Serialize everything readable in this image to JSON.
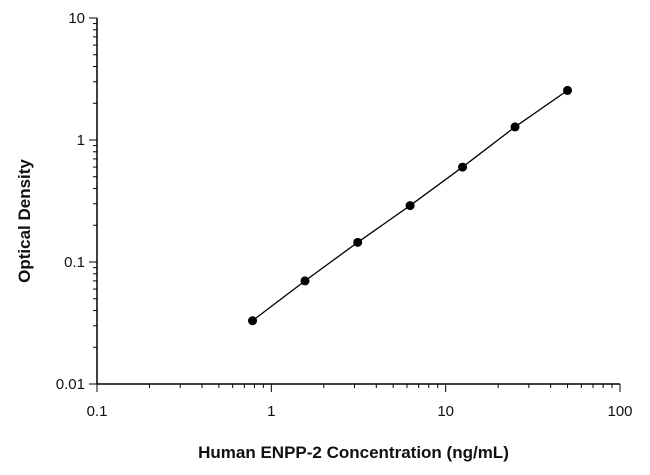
{
  "chart_data": {
    "type": "scatter",
    "title": "",
    "xlabel": "Human ENPP-2 Concentration (ng/mL)",
    "ylabel": "Optical Density",
    "xscale": "log",
    "yscale": "log",
    "xlim": [
      0.1,
      100
    ],
    "ylim": [
      0.01,
      10
    ],
    "x_ticks": [
      "0.1",
      "1",
      "10",
      "100"
    ],
    "y_ticks": [
      "0.01",
      "0.1",
      "1",
      "10"
    ],
    "grid": false,
    "legend": "none",
    "fit_line": true,
    "marker_color": "#000000",
    "line_color": "#000000",
    "series": [
      {
        "x": [
          0.78,
          1.56,
          3.13,
          6.25,
          12.5,
          25,
          50
        ],
        "y": [
          0.033,
          0.07,
          0.145,
          0.29,
          0.6,
          1.28,
          2.55
        ]
      }
    ]
  }
}
